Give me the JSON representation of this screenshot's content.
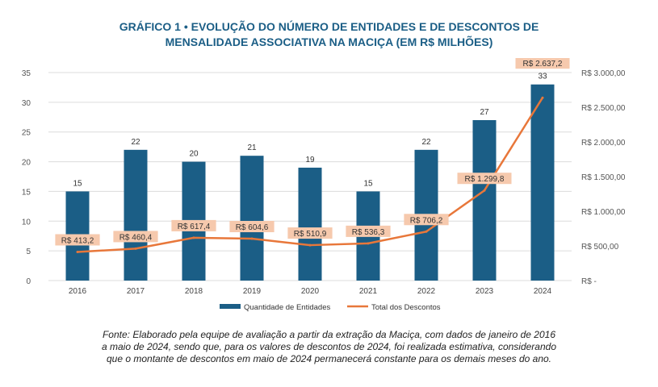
{
  "title_line1": "GRÁFICO 1 • EVOLUÇÃO DO NÚMERO DE ENTIDADES E DE DESCONTOS DE",
  "title_line2": "MENSALIDADE ASSOCIATIVA NA MACIÇA (EM R$ MILHÕES)",
  "source_line1": "Fonte: Elaborado pela equipe de avaliação a partir da extração da Maciça, com dados de janeiro de 2016",
  "source_line2": "a maio de 2024, sendo que, para os valores de descontos de 2024, foi realizada estimativa, considerando",
  "source_line3": "que o montante de descontos em maio de 2024 permanecerá constante para os demais meses do ano.",
  "colors": {
    "bar": "#1b5e86",
    "line": "#e8773a",
    "label_bg": "#f6c9ad",
    "title": "#1b5e86"
  },
  "chart_data": {
    "type": "bar+line",
    "categories": [
      "2016",
      "2017",
      "2018",
      "2019",
      "2020",
      "2021",
      "2022",
      "2023",
      "2024"
    ],
    "series": [
      {
        "name": "Quantidade de Entidades",
        "type": "bar",
        "axis": "left",
        "values": [
          15,
          22,
          20,
          21,
          19,
          15,
          22,
          27,
          33
        ],
        "labels": [
          "15",
          "22",
          "20",
          "21",
          "19",
          "15",
          "22",
          "27",
          "33"
        ]
      },
      {
        "name": "Total dos Descontos",
        "type": "line",
        "axis": "right",
        "values": [
          413.2,
          460.4,
          617.4,
          604.6,
          510.9,
          536.3,
          706.2,
          1299.8,
          2637.2
        ],
        "labels": [
          "R$ 413,2",
          "R$ 460,4",
          "R$ 617,4",
          "R$ 604,6",
          "R$ 510,9",
          "R$ 536,3",
          "R$ 706,2",
          "R$ 1.299,8",
          "R$ 2.637,2"
        ]
      }
    ],
    "y_left": {
      "min": 0,
      "max": 35,
      "ticks": [
        0,
        5,
        10,
        15,
        20,
        25,
        30,
        35
      ],
      "tick_labels": [
        "0",
        "5",
        "10",
        "15",
        "20",
        "25",
        "30",
        "35"
      ]
    },
    "y_right": {
      "min": 0,
      "max": 3000,
      "ticks": [
        0,
        500,
        1000,
        1500,
        2000,
        2500,
        3000
      ],
      "tick_labels": [
        "R$ -",
        "R$ 500,00",
        "R$ 1.000,00",
        "R$ 1.500,00",
        "R$ 2.000,00",
        "R$ 2.500,00",
        "R$ 3.000,00"
      ]
    },
    "grid": true,
    "legend": "bottom"
  }
}
